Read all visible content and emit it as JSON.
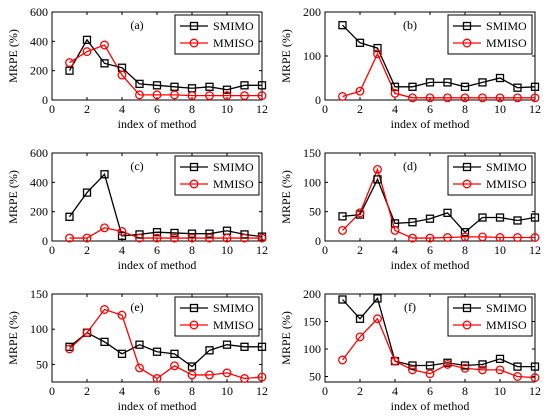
{
  "chart_data": [
    {
      "type": "line",
      "panel_label": "(a)",
      "xlabel": "index of method",
      "ylabel": "MRPE (%)",
      "xlim": [
        0,
        12
      ],
      "ylim": [
        0,
        600
      ],
      "xticks": [
        0,
        2,
        4,
        6,
        8,
        10,
        12
      ],
      "yticks": [
        0,
        200,
        400,
        600
      ],
      "legend_position": "top-right",
      "x": [
        1,
        2,
        3,
        4,
        5,
        6,
        7,
        8,
        9,
        10,
        11,
        12
      ],
      "series": [
        {
          "name": "SMIMO",
          "color": "#000000",
          "marker": "square",
          "values": [
            200,
            410,
            250,
            220,
            110,
            100,
            90,
            80,
            90,
            70,
            100,
            100
          ]
        },
        {
          "name": "MMISO",
          "color": "#ff0000",
          "marker": "circle",
          "values": [
            255,
            330,
            375,
            170,
            35,
            35,
            35,
            30,
            30,
            30,
            30,
            30
          ]
        }
      ]
    },
    {
      "type": "line",
      "panel_label": "(b)",
      "xlabel": "index of method",
      "ylabel": "MRPE (%)",
      "xlim": [
        0,
        12
      ],
      "ylim": [
        0,
        200
      ],
      "xticks": [
        0,
        2,
        4,
        6,
        8,
        10,
        12
      ],
      "yticks": [
        0,
        100,
        200
      ],
      "legend_position": "top-right",
      "x": [
        1,
        2,
        3,
        4,
        5,
        6,
        7,
        8,
        9,
        10,
        11,
        12
      ],
      "series": [
        {
          "name": "SMIMO",
          "color": "#000000",
          "marker": "square",
          "values": [
            170,
            130,
            118,
            30,
            30,
            40,
            40,
            30,
            40,
            50,
            28,
            30
          ]
        },
        {
          "name": "MMISO",
          "color": "#ff0000",
          "marker": "circle",
          "values": [
            8,
            20,
            105,
            15,
            5,
            5,
            5,
            5,
            5,
            5,
            5,
            5
          ]
        }
      ]
    },
    {
      "type": "line",
      "panel_label": "(c)",
      "xlabel": "index of method",
      "ylabel": "MRPE (%)",
      "xlim": [
        0,
        12
      ],
      "ylim": [
        0,
        600
      ],
      "xticks": [
        0,
        2,
        4,
        6,
        8,
        10,
        12
      ],
      "yticks": [
        0,
        200,
        400,
        600
      ],
      "legend_position": "top-right",
      "x": [
        1,
        2,
        3,
        4,
        5,
        6,
        7,
        8,
        9,
        10,
        11,
        12
      ],
      "series": [
        {
          "name": "SMIMO",
          "color": "#000000",
          "marker": "square",
          "values": [
            165,
            330,
            455,
            35,
            45,
            60,
            55,
            50,
            50,
            70,
            45,
            30
          ]
        },
        {
          "name": "MMISO",
          "color": "#ff0000",
          "marker": "circle",
          "values": [
            20,
            20,
            90,
            65,
            20,
            20,
            20,
            20,
            20,
            20,
            20,
            20
          ]
        }
      ]
    },
    {
      "type": "line",
      "panel_label": "(d)",
      "xlabel": "index of method",
      "ylabel": "MRPE (%)",
      "xlim": [
        0,
        12
      ],
      "ylim": [
        0,
        150
      ],
      "xticks": [
        0,
        2,
        4,
        6,
        8,
        10,
        12
      ],
      "yticks": [
        0,
        50,
        100,
        150
      ],
      "legend_position": "top-right",
      "x": [
        1,
        2,
        3,
        4,
        5,
        6,
        7,
        8,
        9,
        10,
        11,
        12
      ],
      "series": [
        {
          "name": "SMIMO",
          "color": "#000000",
          "marker": "square",
          "values": [
            42,
            45,
            105,
            30,
            32,
            38,
            48,
            15,
            40,
            40,
            35,
            40
          ]
        },
        {
          "name": "MMISO",
          "color": "#ff0000",
          "marker": "circle",
          "values": [
            18,
            48,
            122,
            18,
            5,
            5,
            6,
            7,
            7,
            6,
            6,
            6
          ]
        }
      ]
    },
    {
      "type": "line",
      "panel_label": "(e)",
      "xlabel": "index of method",
      "ylabel": "MRPE (%)",
      "xlim": [
        0,
        12
      ],
      "ylim": [
        25,
        150
      ],
      "xticks": [
        0,
        2,
        4,
        6,
        8,
        10,
        12
      ],
      "yticks": [
        50,
        100,
        150
      ],
      "legend_position": "top-right",
      "x": [
        1,
        2,
        3,
        4,
        5,
        6,
        7,
        8,
        9,
        10,
        11,
        12
      ],
      "series": [
        {
          "name": "SMIMO",
          "color": "#000000",
          "marker": "square",
          "values": [
            75,
            95,
            82,
            65,
            78,
            68,
            65,
            47,
            70,
            78,
            75,
            75
          ]
        },
        {
          "name": "MMISO",
          "color": "#ff0000",
          "marker": "circle",
          "values": [
            72,
            95,
            128,
            120,
            45,
            30,
            48,
            35,
            35,
            38,
            30,
            32
          ]
        }
      ]
    },
    {
      "type": "line",
      "panel_label": "(f)",
      "xlabel": "index of method",
      "ylabel": "MRPE (%)",
      "xlim": [
        0,
        12
      ],
      "ylim": [
        40,
        200
      ],
      "xticks": [
        0,
        2,
        4,
        6,
        8,
        10,
        12
      ],
      "yticks": [
        50,
        100,
        150,
        200
      ],
      "legend_position": "top-right",
      "x": [
        1,
        2,
        3,
        4,
        5,
        6,
        7,
        8,
        9,
        10,
        11,
        12
      ],
      "series": [
        {
          "name": "SMIMO",
          "color": "#000000",
          "marker": "square",
          "values": [
            190,
            155,
            192,
            78,
            70,
            70,
            75,
            70,
            72,
            82,
            68,
            68
          ]
        },
        {
          "name": "MMISO",
          "color": "#ff0000",
          "marker": "circle",
          "values": [
            80,
            122,
            155,
            78,
            62,
            55,
            72,
            65,
            62,
            62,
            50,
            48
          ]
        }
      ]
    }
  ]
}
